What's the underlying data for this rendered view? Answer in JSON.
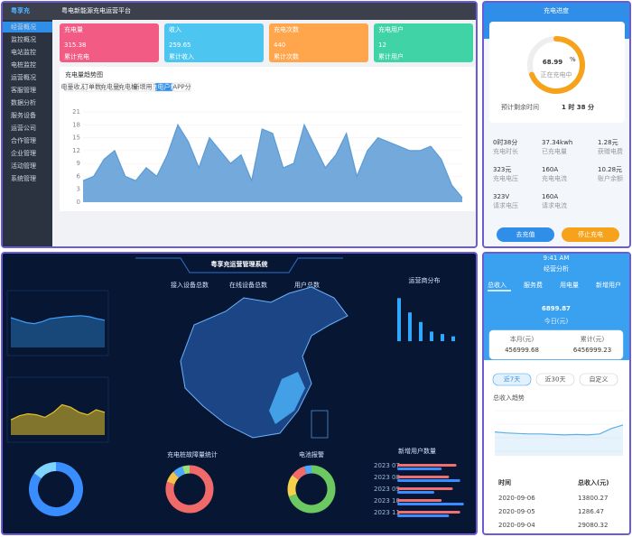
{
  "admin": {
    "logo": "粤享充",
    "title": "粤电新能源充电运营平台",
    "menu": [
      "经营概况",
      "监控概况",
      "电站监控",
      "电桩监控",
      "运营概况",
      "客服管理",
      "数据分析",
      "服务设备",
      "运营公司",
      "合作管理",
      "企业管理",
      "活动管理",
      "系统管理"
    ],
    "cards": [
      {
        "label": "充电量",
        "value": 315.38,
        "sub": "累计充电",
        "color": "#f25b84"
      },
      {
        "label": "收入",
        "value": 259.65,
        "sub": "累计收入",
        "color": "#4cc6f0"
      },
      {
        "label": "充电次数",
        "value": 440,
        "sub": "累计次数",
        "color": "#ffa64d"
      },
      {
        "label": "充电用户",
        "value": 12,
        "sub": "累计用户",
        "color": "#3fd3a6"
      }
    ],
    "chart": {
      "title": "充电量趋势图",
      "tabs": [
        "电量收入",
        "订单数",
        "充电量",
        "充电桩",
        "新增用户",
        "充电户数",
        "APP分"
      ],
      "ylim": [
        0,
        21
      ],
      "yticks": [
        0,
        3,
        6,
        9,
        12,
        15,
        18,
        21
      ],
      "color": "#5b9bd5",
      "values": [
        5,
        6,
        10,
        12,
        6,
        5,
        8,
        6,
        11,
        18,
        14,
        8,
        15,
        12,
        9,
        11,
        5,
        17,
        16,
        8,
        9,
        18,
        13,
        8,
        11,
        16,
        6,
        12,
        15,
        14,
        13,
        12,
        12,
        13,
        10,
        4,
        1
      ]
    }
  },
  "charge": {
    "title": "充电进度",
    "percent": 68.99,
    "unit": "%",
    "status": "正在充电中",
    "remain_label": "预计剩余时间",
    "remain": "1 时 38 分",
    "stats": [
      {
        "value": "0时38分",
        "label": "充电时长"
      },
      {
        "value": "37.34kwh",
        "label": "已充电量"
      },
      {
        "value": "1.28元",
        "label": "获赠电费"
      },
      {
        "value": "323元",
        "label": "充电电压"
      },
      {
        "value": "160A",
        "label": "充电电流"
      },
      {
        "value": "10.28元",
        "label": "账户余额"
      },
      {
        "value": "323V",
        "label": "请求电压"
      },
      {
        "value": "160A",
        "label": "请求电流"
      }
    ],
    "buttons": [
      "去充值",
      "停止充电"
    ]
  },
  "screen": {
    "title": "粤享充运营管理系统",
    "headers": [
      "接入设备总数",
      "在线设备总数",
      "用户总数"
    ],
    "line1": {
      "ylim": [
        0,
        100
      ],
      "color": "#3aa0ff",
      "values": [
        60,
        55,
        50,
        48,
        52,
        58,
        60,
        62,
        63,
        64,
        62,
        58,
        55
      ]
    },
    "line2": {
      "ylim": [
        0,
        100
      ],
      "color": "#e6c229",
      "values": [
        30,
        38,
        42,
        40,
        35,
        45,
        60,
        55,
        45,
        40,
        50,
        45
      ]
    },
    "operators": {
      "title": "运营商分布",
      "ylim": [
        0,
        100
      ],
      "color": "#2fa8ff",
      "values": [
        90,
        60,
        40,
        20,
        15,
        10
      ]
    },
    "donut1": {
      "values": [
        85,
        15
      ],
      "colors": [
        "#3a8dff",
        "#7fd3ff"
      ]
    },
    "faults": {
      "title": "充电桩故障量统计",
      "values": [
        80,
        8,
        7,
        5
      ],
      "colors": [
        "#f06a6a",
        "#f5c04a",
        "#4aa8ff",
        "#9be07a"
      ]
    },
    "alarms": {
      "title": "电池报警",
      "values": [
        70,
        15,
        10,
        5
      ],
      "colors": [
        "#6cc860",
        "#f5d04a",
        "#f06a6a",
        "#4aa8ff"
      ]
    },
    "users": {
      "title": "新增用户数量",
      "categories": [
        "2023 07",
        "2023 08",
        "2023 09",
        "2023 10",
        "2023 11"
      ],
      "xlim": [
        0,
        100
      ],
      "series": [
        {
          "color": "#f07070",
          "values": [
            80,
            70,
            75,
            60,
            85
          ]
        },
        {
          "color": "#3a8dff",
          "values": [
            60,
            85,
            50,
            90,
            70
          ]
        }
      ]
    }
  },
  "analysis": {
    "time": "9:41 AM",
    "title": "经营分析",
    "tabs": [
      "总收入",
      "服务费",
      "用电量",
      "新增用户"
    ],
    "today": 6899.87,
    "today_label": "今日(元)",
    "month_label": "本月(元)",
    "month": 456999.68,
    "total_label": "累计(元)",
    "total": 6456999.23,
    "ranges": [
      "近7天",
      "近30天",
      "自定义"
    ],
    "trend_title": "总收入趋势",
    "trend": {
      "ylim": [
        0,
        100
      ],
      "color": "#5ab0e8",
      "values": [
        48,
        46,
        45,
        44,
        44,
        43,
        42,
        43,
        42,
        44,
        55,
        62
      ]
    },
    "table": {
      "header": [
        "时间",
        "总收入(元)"
      ],
      "rows": [
        [
          "2020-09-06",
          13800.27
        ],
        [
          "2020-09-05",
          1286.47
        ],
        [
          "2020-09-04",
          29080.32
        ]
      ]
    }
  }
}
